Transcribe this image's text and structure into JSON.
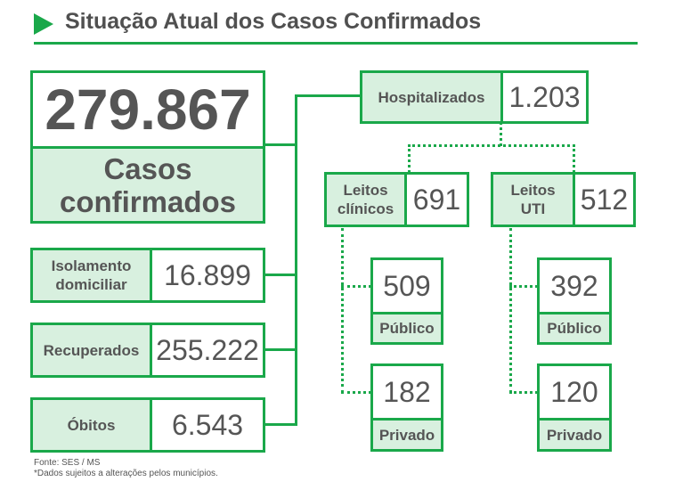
{
  "header": {
    "title": "Situação Atual dos Casos Confirmados"
  },
  "confirmed": {
    "value": "279.867",
    "label": "Casos confirmados"
  },
  "outcomes": [
    {
      "label": "Isolamento domiciliar",
      "value": "16.899"
    },
    {
      "label": "Recuperados",
      "value": "255.222"
    },
    {
      "label": "Óbitos",
      "value": "6.543"
    }
  ],
  "hospitalized": {
    "label": "Hospitalizados",
    "value": "1.203"
  },
  "beds": {
    "clinical": {
      "label": "Leitos clínicos",
      "value": "691",
      "public": {
        "value": "509",
        "label": "Público"
      },
      "private": {
        "value": "182",
        "label": "Privado"
      }
    },
    "icu": {
      "label": "Leitos UTI",
      "value": "512",
      "public": {
        "value": "392",
        "label": "Público"
      },
      "private": {
        "value": "120",
        "label": "Privado"
      }
    }
  },
  "footer": {
    "source": "Fonte: SES / MS",
    "note": "*Dados sujeitos a alterações pelos municípios."
  },
  "colors": {
    "accent": "#1aa84a",
    "fill": "#d8f0df",
    "text": "#555555"
  }
}
